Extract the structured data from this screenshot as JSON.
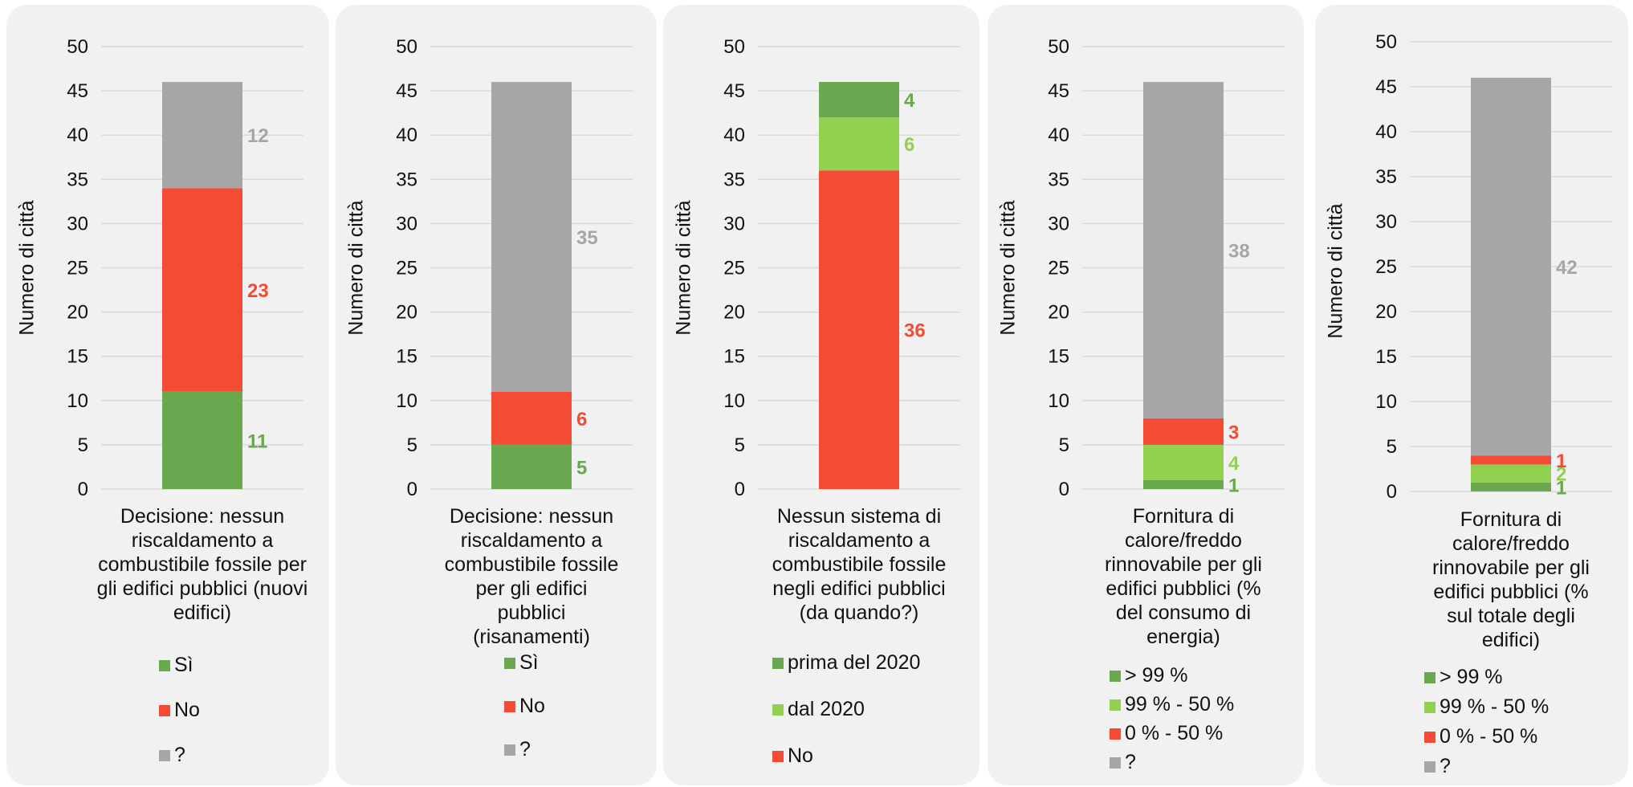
{
  "colors": {
    "dark_green": "#6aa84f",
    "light_green": "#92d050",
    "red": "#f44b35",
    "gray": "#a6a6a6",
    "panel_bg": "#f1f1f1",
    "grid": "#d9d9d9"
  },
  "chart_data": [
    {
      "type": "bar",
      "stacked": true,
      "ylabel": "Numero di città",
      "ylim": [
        0,
        50
      ],
      "yticks": [
        0,
        5,
        10,
        15,
        20,
        25,
        30,
        35,
        40,
        45,
        50
      ],
      "grid": true,
      "categories": [
        "Decisione: nessun riscaldamento a combustibile fossile per gli edifici pubblici (nuovi edifici)"
      ],
      "series": [
        {
          "name": "Sì",
          "values": [
            11
          ],
          "color": "#6aa84f"
        },
        {
          "name": "No",
          "values": [
            23
          ],
          "color": "#f44b35"
        },
        {
          "name": "?",
          "values": [
            12
          ],
          "color": "#a6a6a6"
        }
      ],
      "legend_order": [
        "Sì",
        "No",
        "?"
      ]
    },
    {
      "type": "bar",
      "stacked": true,
      "ylabel": "Numero di città",
      "ylim": [
        0,
        50
      ],
      "yticks": [
        0,
        5,
        10,
        15,
        20,
        25,
        30,
        35,
        40,
        45,
        50
      ],
      "grid": true,
      "categories": [
        "Decisione: nessun riscaldamento a combustibile fossile per gli edifici pubblici (risanamenti)"
      ],
      "series": [
        {
          "name": "Sì",
          "values": [
            5
          ],
          "color": "#6aa84f"
        },
        {
          "name": "No",
          "values": [
            6
          ],
          "color": "#f44b35"
        },
        {
          "name": "?",
          "values": [
            35
          ],
          "color": "#a6a6a6"
        }
      ],
      "legend_order": [
        "Sì",
        "No",
        "?"
      ]
    },
    {
      "type": "bar",
      "stacked": true,
      "ylabel": "Numero di città",
      "ylim": [
        0,
        50
      ],
      "yticks": [
        0,
        5,
        10,
        15,
        20,
        25,
        30,
        35,
        40,
        45,
        50
      ],
      "grid": true,
      "categories": [
        "Nessun sistema di riscaldamento a combustibile fossile negli edifici pubblici (da quando?)"
      ],
      "series": [
        {
          "name": "No",
          "values": [
            36
          ],
          "color": "#f44b35"
        },
        {
          "name": "dal 2020",
          "values": [
            6
          ],
          "color": "#92d050"
        },
        {
          "name": "prima del 2020",
          "values": [
            4
          ],
          "color": "#6aa84f"
        }
      ],
      "legend_order": [
        "prima del 2020",
        "dal 2020",
        "No"
      ]
    },
    {
      "type": "bar",
      "stacked": true,
      "ylabel": "Numero di città",
      "ylim": [
        0,
        50
      ],
      "yticks": [
        0,
        5,
        10,
        15,
        20,
        25,
        30,
        35,
        40,
        45,
        50
      ],
      "grid": true,
      "categories": [
        "Fornitura di calore/freddo rinnovabile per gli edifici pubblici (% del consumo di energia)"
      ],
      "series": [
        {
          "name": "> 99 %",
          "values": [
            1
          ],
          "color": "#6aa84f"
        },
        {
          "name": "99 % - 50 %",
          "values": [
            4
          ],
          "color": "#92d050"
        },
        {
          "name": "0 % - 50 %",
          "values": [
            3
          ],
          "color": "#f44b35"
        },
        {
          "name": "?",
          "values": [
            38
          ],
          "color": "#a6a6a6"
        }
      ],
      "legend_order": [
        "> 99 %",
        "99 % - 50 %",
        "0 % - 50 %",
        "?"
      ]
    },
    {
      "type": "bar",
      "stacked": true,
      "ylabel": "Numero di città",
      "ylim": [
        0,
        50
      ],
      "yticks": [
        0,
        5,
        10,
        15,
        20,
        25,
        30,
        35,
        40,
        45,
        50
      ],
      "grid": true,
      "categories": [
        "Fornitura di calore/freddo rinnovabile per gli edifici pubblici (% sul totale degli edifici)"
      ],
      "series": [
        {
          "name": "> 99 %",
          "values": [
            1
          ],
          "color": "#6aa84f"
        },
        {
          "name": "99 % - 50 %",
          "values": [
            2
          ],
          "color": "#92d050"
        },
        {
          "name": "0 % - 50 %",
          "values": [
            1
          ],
          "color": "#f44b35"
        },
        {
          "name": "?",
          "values": [
            42
          ],
          "color": "#a6a6a6"
        }
      ],
      "legend_order": [
        "> 99 %",
        "99 % - 50 %",
        "0 % - 50 %",
        "?"
      ]
    }
  ]
}
